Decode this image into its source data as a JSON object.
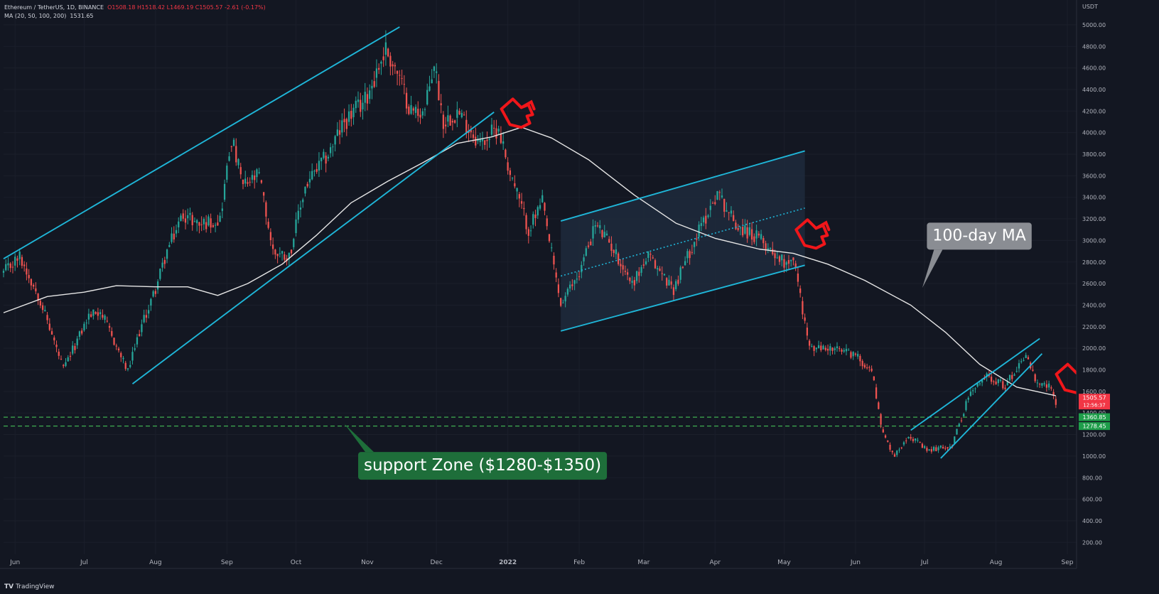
{
  "header": {
    "symbol": "Ethereum / TetherUS, 1D, BINANCE",
    "ohlc": "O1508.18  H1518.42  L1469.19  C1505.57  -2.61 (-0.17%)",
    "ma_label": "MA (20, 50, 100, 200)",
    "ma_value": "1531.65"
  },
  "footer": {
    "brand_mark": "TV",
    "brand": "TradingView"
  },
  "colors": {
    "background": "#131722",
    "up": "#26a69a",
    "down": "#ef5350",
    "trendline": "#1fb6d8",
    "ma": "#e6e6e6",
    "support": "#3fae50",
    "arrow": "#f0161a",
    "channel_fill": "#1f2a3c"
  },
  "chart_data": {
    "type": "candlestick",
    "x_unit": "date",
    "xlim": [
      "2021-05-27",
      "2022-09-05"
    ],
    "y_unit": "USDT",
    "ylim": [
      90,
      5230
    ],
    "y_ticks": [
      200,
      400,
      600,
      800,
      1000,
      1200,
      1400,
      1600,
      1800,
      2000,
      2200,
      2400,
      2600,
      2800,
      3000,
      3200,
      3400,
      3600,
      3800,
      4000,
      4200,
      4400,
      4600,
      4800,
      5000
    ],
    "y_tick_labels": [
      "200.00",
      "400.00",
      "600.00",
      "800.00",
      "1000.00",
      "1200.00",
      "1400.00",
      "1600.00",
      "1800.00",
      "2000.00",
      "2200.00",
      "2400.00",
      "2600.00",
      "2800.00",
      "3000.00",
      "3200.00",
      "3400.00",
      "3600.00",
      "3800.00",
      "4000.00",
      "4200.00",
      "4400.00",
      "4600.00",
      "4800.00",
      "5000.00"
    ],
    "y_axis_unit_label": "USDT",
    "x_ticks": [
      {
        "label": "Jun",
        "date": "2021-06-01"
      },
      {
        "label": "Jul",
        "date": "2021-07-01"
      },
      {
        "label": "Aug",
        "date": "2021-08-01"
      },
      {
        "label": "Sep",
        "date": "2021-09-01"
      },
      {
        "label": "Oct",
        "date": "2021-10-01"
      },
      {
        "label": "Nov",
        "date": "2021-11-01"
      },
      {
        "label": "Dec",
        "date": "2021-12-01"
      },
      {
        "label": "2022",
        "date": "2022-01-01",
        "bold": true
      },
      {
        "label": "Feb",
        "date": "2022-02-01"
      },
      {
        "label": "Mar",
        "date": "2022-03-01"
      },
      {
        "label": "Apr",
        "date": "2022-04-01"
      },
      {
        "label": "May",
        "date": "2022-05-01"
      },
      {
        "label": "Jun",
        "date": "2022-06-01"
      },
      {
        "label": "Jul",
        "date": "2022-07-01"
      },
      {
        "label": "Aug",
        "date": "2022-08-01"
      },
      {
        "label": "Sep",
        "date": "2022-09-01"
      }
    ],
    "price_path": [
      [
        "2021-05-27",
        2700
      ],
      [
        "2021-06-03",
        2850
      ],
      [
        "2021-06-12",
        2450
      ],
      [
        "2021-06-22",
        1800
      ],
      [
        "2021-07-03",
        2300
      ],
      [
        "2021-07-08",
        2350
      ],
      [
        "2021-07-20",
        1780
      ],
      [
        "2021-07-25",
        2150
      ],
      [
        "2021-08-01",
        2550
      ],
      [
        "2021-08-06",
        2900
      ],
      [
        "2021-08-13",
        3250
      ],
      [
        "2021-08-20",
        3150
      ],
      [
        "2021-08-29",
        3200
      ],
      [
        "2021-09-03",
        3950
      ],
      [
        "2021-09-08",
        3500
      ],
      [
        "2021-09-15",
        3600
      ],
      [
        "2021-09-21",
        2900
      ],
      [
        "2021-09-28",
        2850
      ],
      [
        "2021-10-05",
        3500
      ],
      [
        "2021-10-15",
        3800
      ],
      [
        "2021-10-22",
        4100
      ],
      [
        "2021-10-31",
        4300
      ],
      [
        "2021-11-09",
        4780
      ],
      [
        "2021-11-14",
        4550
      ],
      [
        "2021-11-20",
        4200
      ],
      [
        "2021-11-26",
        4200
      ],
      [
        "2021-11-30",
        4650
      ],
      [
        "2021-12-04",
        4100
      ],
      [
        "2021-12-10",
        4200
      ],
      [
        "2021-12-20",
        3900
      ],
      [
        "2021-12-28",
        4050
      ],
      [
        "2022-01-01",
        3700
      ],
      [
        "2022-01-10",
        3100
      ],
      [
        "2022-01-16",
        3350
      ],
      [
        "2022-01-24",
        2400
      ],
      [
        "2022-02-01",
        2700
      ],
      [
        "2022-02-08",
        3150
      ],
      [
        "2022-02-15",
        2950
      ],
      [
        "2022-02-24",
        2600
      ],
      [
        "2022-03-03",
        2850
      ],
      [
        "2022-03-14",
        2550
      ],
      [
        "2022-03-22",
        2950
      ],
      [
        "2022-04-02",
        3450
      ],
      [
        "2022-04-10",
        3150
      ],
      [
        "2022-04-21",
        3000
      ],
      [
        "2022-05-01",
        2800
      ],
      [
        "2022-05-05",
        2850
      ],
      [
        "2022-05-12",
        2000
      ],
      [
        "2022-05-20",
        2000
      ],
      [
        "2022-05-31",
        1950
      ],
      [
        "2022-06-08",
        1800
      ],
      [
        "2022-06-13",
        1200
      ],
      [
        "2022-06-18",
        1000
      ],
      [
        "2022-06-24",
        1200
      ],
      [
        "2022-07-02",
        1050
      ],
      [
        "2022-07-13",
        1100
      ],
      [
        "2022-07-20",
        1550
      ],
      [
        "2022-07-28",
        1750
      ],
      [
        "2022-08-05",
        1650
      ],
      [
        "2022-08-14",
        1950
      ],
      [
        "2022-08-19",
        1650
      ],
      [
        "2022-08-24",
        1650
      ],
      [
        "2022-08-27",
        1505
      ]
    ],
    "ma_series": {
      "name": "100-day MA",
      "points": [
        [
          "2021-05-27",
          2330
        ],
        [
          "2021-06-15",
          2480
        ],
        [
          "2021-07-01",
          2520
        ],
        [
          "2021-07-15",
          2580
        ],
        [
          "2021-08-01",
          2570
        ],
        [
          "2021-08-15",
          2570
        ],
        [
          "2021-08-28",
          2490
        ],
        [
          "2021-09-10",
          2600
        ],
        [
          "2021-09-25",
          2780
        ],
        [
          "2021-10-10",
          3050
        ],
        [
          "2021-10-25",
          3350
        ],
        [
          "2021-11-10",
          3550
        ],
        [
          "2021-11-25",
          3720
        ],
        [
          "2021-12-10",
          3900
        ],
        [
          "2021-12-25",
          3960
        ],
        [
          "2022-01-07",
          4050
        ],
        [
          "2022-01-20",
          3950
        ],
        [
          "2022-02-05",
          3750
        ],
        [
          "2022-02-25",
          3420
        ],
        [
          "2022-03-15",
          3160
        ],
        [
          "2022-04-01",
          3020
        ],
        [
          "2022-04-20",
          2920
        ],
        [
          "2022-05-05",
          2880
        ],
        [
          "2022-05-20",
          2780
        ],
        [
          "2022-06-05",
          2630
        ],
        [
          "2022-06-25",
          2400
        ],
        [
          "2022-07-10",
          2150
        ],
        [
          "2022-07-25",
          1850
        ],
        [
          "2022-08-10",
          1640
        ],
        [
          "2022-08-27",
          1560
        ]
      ]
    },
    "trendlines": [
      {
        "from": [
          "2021-05-27",
          2830
        ],
        "to": [
          "2021-11-15",
          4980
        ]
      },
      {
        "from": [
          "2021-07-22",
          1670
        ],
        "to": [
          "2021-12-26",
          4190
        ]
      },
      {
        "from": [
          "2022-01-24",
          3180
        ],
        "to": [
          "2022-05-10",
          3830
        ]
      },
      {
        "from": [
          "2022-01-24",
          2160
        ],
        "to": [
          "2022-05-10",
          2770
        ]
      },
      {
        "from": [
          "2022-01-24",
          2670
        ],
        "to": [
          "2022-05-10",
          3300
        ],
        "dashed": true
      },
      {
        "from": [
          "2022-06-25",
          1240
        ],
        "to": [
          "2022-08-20",
          2090
        ]
      },
      {
        "from": [
          "2022-07-08",
          980
        ],
        "to": [
          "2022-08-21",
          1950
        ]
      }
    ],
    "channel": {
      "start": "2022-01-24",
      "end": "2022-05-10",
      "top": [
        3180,
        3830
      ],
      "bottom": [
        2160,
        2770
      ]
    },
    "support_lines": [
      1360.85,
      1278.45
    ],
    "price_tags": [
      {
        "text": "1505.57",
        "subtext": "12:56:37",
        "value": 1505.57,
        "color": "#f23645"
      },
      {
        "text": "1360.85",
        "value": 1360.85,
        "color": "#1e9e4a"
      },
      {
        "text": "1278.45",
        "value": 1278.45,
        "color": "#1e9e4a"
      }
    ],
    "annotations": [
      {
        "text": "support Zone ($1280-$1350)",
        "anchor": [
          "2021-10-22",
          1300
        ],
        "box": [
          "2021-10-28",
          910
        ],
        "color": "#1e6e3a"
      },
      {
        "text": "100-day MA",
        "anchor": [
          "2022-06-30",
          2560
        ],
        "box": [
          "2022-07-02",
          3040
        ],
        "color": "#8a8d93"
      }
    ],
    "arrows": [
      {
        "at": [
          "2022-01-05",
          4180
        ],
        "name": "arrow-pointing-ma-top"
      },
      {
        "at": [
          "2022-05-13",
          3060
        ],
        "name": "arrow-pointing-channel-break"
      },
      {
        "at": [
          "2022-09-03",
          1720
        ],
        "name": "arrow-pointing-current-price"
      }
    ]
  }
}
